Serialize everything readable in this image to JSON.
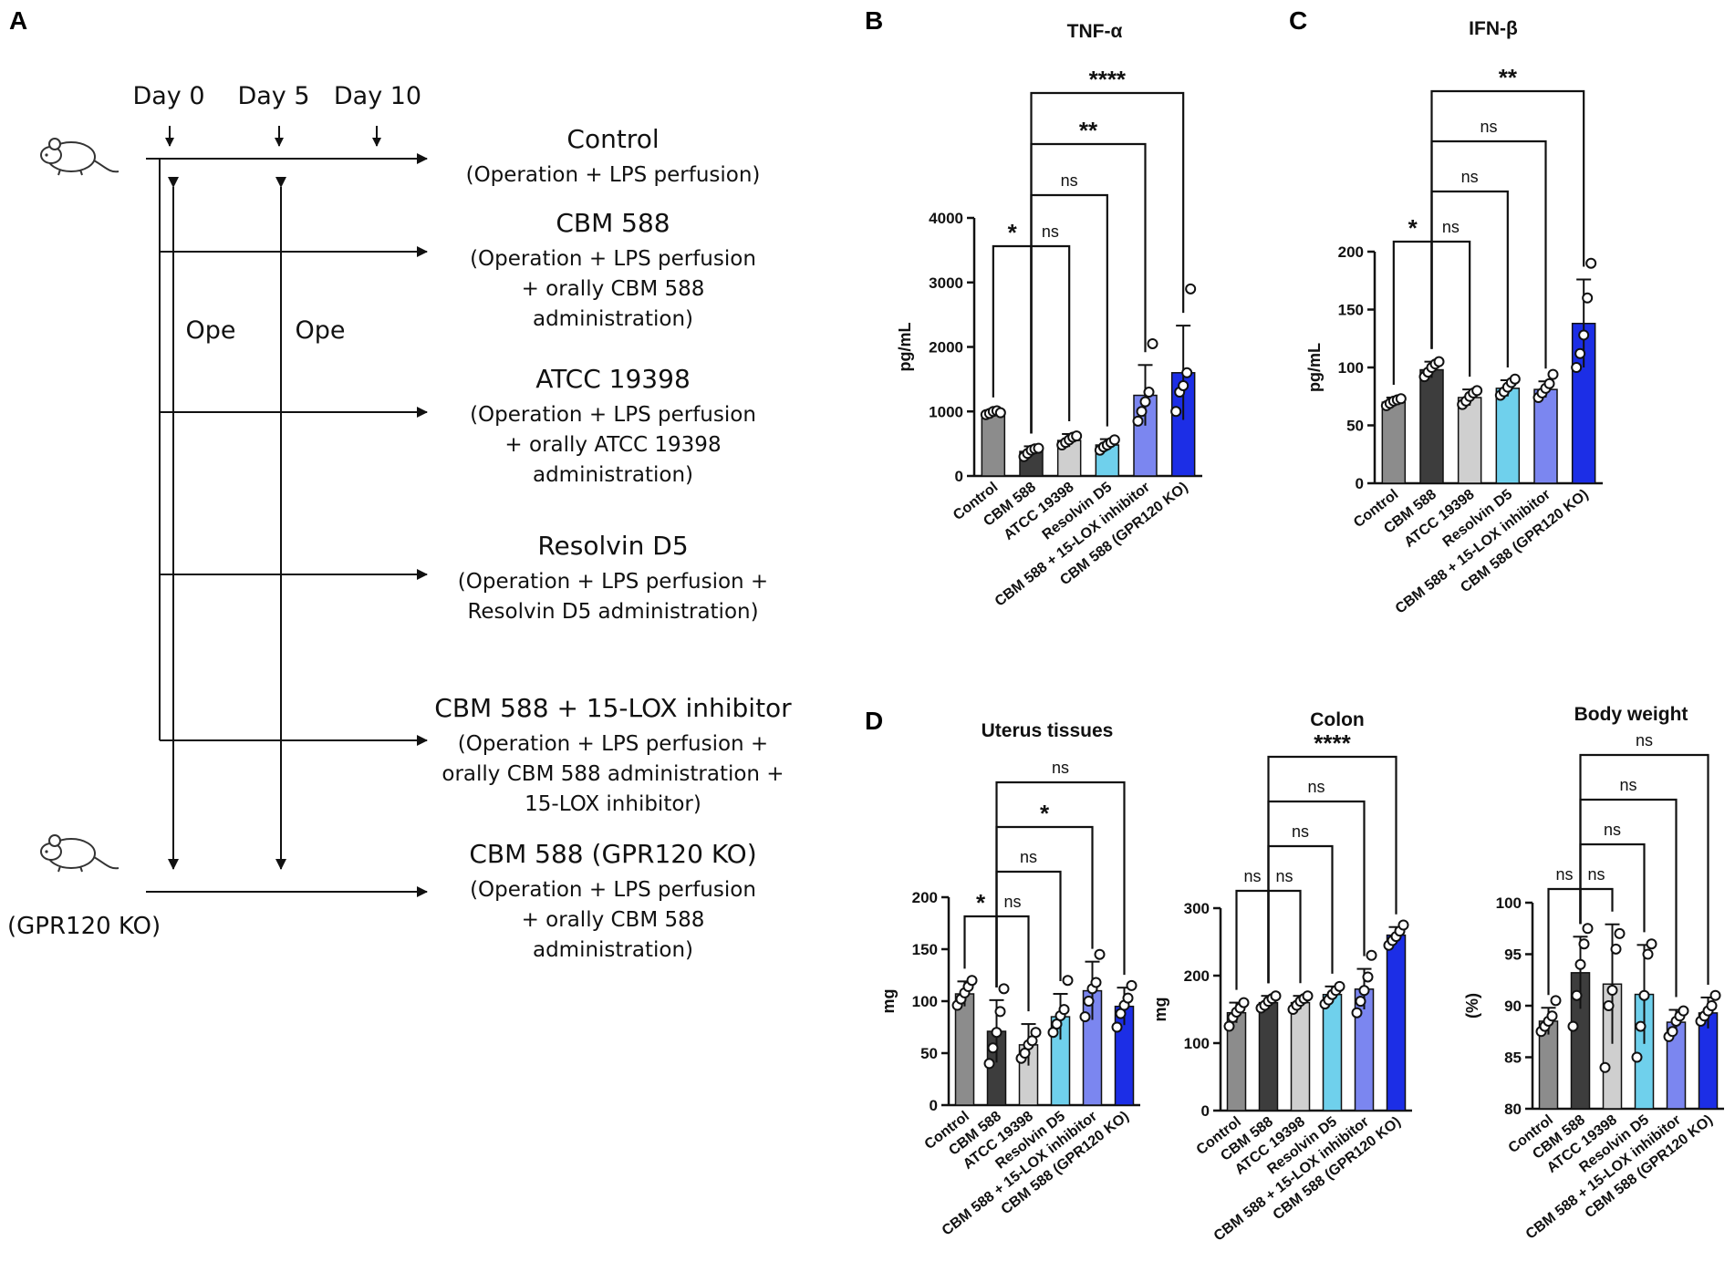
{
  "panel_letters": {
    "a": "A",
    "b": "B",
    "c": "C",
    "d": "D"
  },
  "schema": {
    "days": [
      "Day 0",
      "Day 5",
      "Day 10"
    ],
    "ope_labels": [
      "Ope",
      "Ope"
    ],
    "ko_mouse_label": "(GPR120 KO)",
    "groups": [
      {
        "name": "Control",
        "desc": [
          "(Operation + LPS perfusion)"
        ]
      },
      {
        "name": "CBM 588",
        "desc": [
          "(Operation + LPS perfusion",
          "+ orally CBM 588",
          "administration)"
        ]
      },
      {
        "name": "ATCC 19398",
        "desc": [
          "(Operation + LPS perfusion",
          "+ orally ATCC 19398",
          "administration)"
        ]
      },
      {
        "name": "Resolvin D5",
        "desc": [
          "(Operation + LPS perfusion +",
          "Resolvin D5 administration)"
        ]
      },
      {
        "name": "CBM 588 + 15-LOX inhibitor",
        "desc": [
          "(Operation + LPS perfusion +",
          "orally CBM 588 administration +",
          "15-LOX inhibitor)"
        ]
      },
      {
        "name": "CBM 588 (GPR120 KO)",
        "desc": [
          "(Operation + LPS perfusion",
          "+ orally CBM 588",
          "administration)"
        ]
      }
    ]
  },
  "colors": {
    "bars": [
      "#8c8c8c",
      "#3d3d3d",
      "#cfcfcf",
      "#6fd0ec",
      "#7b86f0",
      "#1c2ee6"
    ],
    "axis": "#111111",
    "point_fill": "#ffffff"
  },
  "chart_data": [
    {
      "id": "tnf",
      "type": "bar",
      "title": "TNF-α",
      "ylabel": "pg/mL",
      "ylim": [
        0,
        4000
      ],
      "yticks": [
        0,
        1000,
        2000,
        3000,
        4000
      ],
      "categories": [
        "Control",
        "CBM 588",
        "ATCC 19398",
        "Resolvin D5",
        "CBM 588 + 15-LOX inhibitor",
        "CBM 588 (GPR120 KO)"
      ],
      "values": [
        980,
        380,
        550,
        480,
        1250,
        1600
      ],
      "errors": [
        40,
        80,
        100,
        90,
        470,
        730
      ],
      "points": [
        [
          950,
          970,
          1000,
          1010,
          980
        ],
        [
          300,
          350,
          400,
          420,
          430
        ],
        [
          480,
          520,
          560,
          600,
          620
        ],
        [
          400,
          450,
          480,
          520,
          560
        ],
        [
          850,
          1000,
          1150,
          1300,
          2050
        ],
        [
          1000,
          1300,
          1400,
          1600,
          2900
        ]
      ],
      "comparisons": [
        {
          "from": 0,
          "to": 1,
          "label": "*"
        },
        {
          "from": 1,
          "to": 2,
          "label": "ns"
        },
        {
          "from": 1,
          "to": 3,
          "label": "ns"
        },
        {
          "from": 1,
          "to": 4,
          "label": "**"
        },
        {
          "from": 1,
          "to": 5,
          "label": "****"
        }
      ]
    },
    {
      "id": "ifn",
      "type": "bar",
      "title": "IFN-β",
      "ylabel": "pg/mL",
      "ylim": [
        0,
        200
      ],
      "yticks": [
        0,
        50,
        100,
        150,
        200
      ],
      "categories": [
        "Control",
        "CBM 588",
        "ATCC 19398",
        "Resolvin D5",
        "CBM 588 + 15-LOX inhibitor",
        "CBM 588 (GPR120 KO)"
      ],
      "values": [
        70,
        98,
        74,
        82,
        81,
        138
      ],
      "errors": [
        4,
        7,
        7,
        7,
        7,
        38
      ],
      "points": [
        [
          67,
          69,
          71,
          72,
          73
        ],
        [
          92,
          96,
          100,
          103,
          105
        ],
        [
          68,
          71,
          75,
          78,
          80
        ],
        [
          76,
          79,
          83,
          87,
          90
        ],
        [
          74,
          78,
          82,
          86,
          94
        ],
        [
          100,
          112,
          128,
          160,
          190
        ]
      ],
      "comparisons": [
        {
          "from": 0,
          "to": 1,
          "label": "*"
        },
        {
          "from": 1,
          "to": 2,
          "label": "ns"
        },
        {
          "from": 1,
          "to": 3,
          "label": "ns"
        },
        {
          "from": 1,
          "to": 4,
          "label": "ns"
        },
        {
          "from": 1,
          "to": 5,
          "label": "**"
        }
      ]
    },
    {
      "id": "uterus",
      "type": "bar",
      "title": "Uterus tissues",
      "ylabel": "mg",
      "ylim": [
        0,
        200
      ],
      "yticks": [
        0,
        50,
        100,
        150,
        200
      ],
      "categories": [
        "Control",
        "CBM 588",
        "ATCC 19398",
        "Resolvin D5",
        "CBM 588 + 15-LOX inhibitor",
        "CBM 588 (GPR120 KO)"
      ],
      "values": [
        107,
        71,
        58,
        85,
        110,
        95
      ],
      "errors": [
        12,
        30,
        20,
        22,
        28,
        18
      ],
      "points": [
        [
          96,
          102,
          108,
          114,
          120
        ],
        [
          40,
          55,
          70,
          90,
          112
        ],
        [
          45,
          50,
          58,
          62,
          70
        ],
        [
          70,
          78,
          86,
          92,
          120
        ],
        [
          85,
          100,
          112,
          118,
          145
        ],
        [
          75,
          88,
          96,
          103,
          115
        ]
      ],
      "comparisons": [
        {
          "from": 0,
          "to": 1,
          "label": "*"
        },
        {
          "from": 1,
          "to": 2,
          "label": "ns"
        },
        {
          "from": 1,
          "to": 3,
          "label": "ns"
        },
        {
          "from": 1,
          "to": 4,
          "label": "*"
        },
        {
          "from": 1,
          "to": 5,
          "label": "ns"
        }
      ]
    },
    {
      "id": "colon",
      "type": "bar",
      "title": "Colon",
      "ylabel": "mg",
      "ylim": [
        0,
        300
      ],
      "yticks": [
        0,
        100,
        200,
        300
      ],
      "categories": [
        "Control",
        "CBM 588",
        "ATCC 19398",
        "Resolvin D5",
        "CBM 588 + 15-LOX inhibitor",
        "CBM 588 (GPR120 KO)"
      ],
      "values": [
        145,
        160,
        160,
        172,
        180,
        260
      ],
      "errors": [
        15,
        10,
        10,
        12,
        30,
        12
      ],
      "points": [
        [
          125,
          138,
          146,
          152,
          160
        ],
        [
          152,
          156,
          162,
          166,
          170
        ],
        [
          150,
          156,
          162,
          166,
          170
        ],
        [
          158,
          164,
          172,
          178,
          184
        ],
        [
          145,
          162,
          178,
          198,
          230
        ],
        [
          245,
          252,
          258,
          266,
          275
        ]
      ],
      "comparisons": [
        {
          "from": 0,
          "to": 1,
          "label": "ns"
        },
        {
          "from": 1,
          "to": 2,
          "label": "ns"
        },
        {
          "from": 1,
          "to": 3,
          "label": "ns"
        },
        {
          "from": 1,
          "to": 4,
          "label": "ns"
        },
        {
          "from": 1,
          "to": 5,
          "label": "****"
        }
      ]
    },
    {
      "id": "bodyweight",
      "type": "bar",
      "title": "Body weight",
      "ylabel": "(%)",
      "ylim": [
        80,
        100
      ],
      "yticks": [
        80,
        85,
        90,
        95,
        100
      ],
      "categories": [
        "Control",
        "CBM 588",
        "ATCC 19398",
        "Resolvin D5",
        "CBM 588 + 15-LOX inhibitor",
        "CBM 588 (GPR120 KO)"
      ],
      "values": [
        88.5,
        93.2,
        92.1,
        91.1,
        88.4,
        89.3
      ],
      "errors": [
        1.3,
        3.5,
        5.8,
        4.8,
        1.2,
        1.5
      ],
      "points": [
        [
          87.5,
          88,
          88.5,
          89,
          90.5
        ],
        [
          88,
          91,
          94,
          96,
          97.5
        ],
        [
          84,
          90,
          91.5,
          95.5,
          97
        ],
        [
          85,
          88,
          91,
          95,
          96
        ],
        [
          87,
          87.5,
          88.5,
          89,
          89.5
        ],
        [
          88.5,
          89,
          89.5,
          90,
          91
        ]
      ],
      "comparisons": [
        {
          "from": 0,
          "to": 1,
          "label": "ns"
        },
        {
          "from": 1,
          "to": 2,
          "label": "ns"
        },
        {
          "from": 1,
          "to": 3,
          "label": "ns"
        },
        {
          "from": 1,
          "to": 4,
          "label": "ns"
        },
        {
          "from": 1,
          "to": 5,
          "label": "ns"
        }
      ]
    }
  ]
}
